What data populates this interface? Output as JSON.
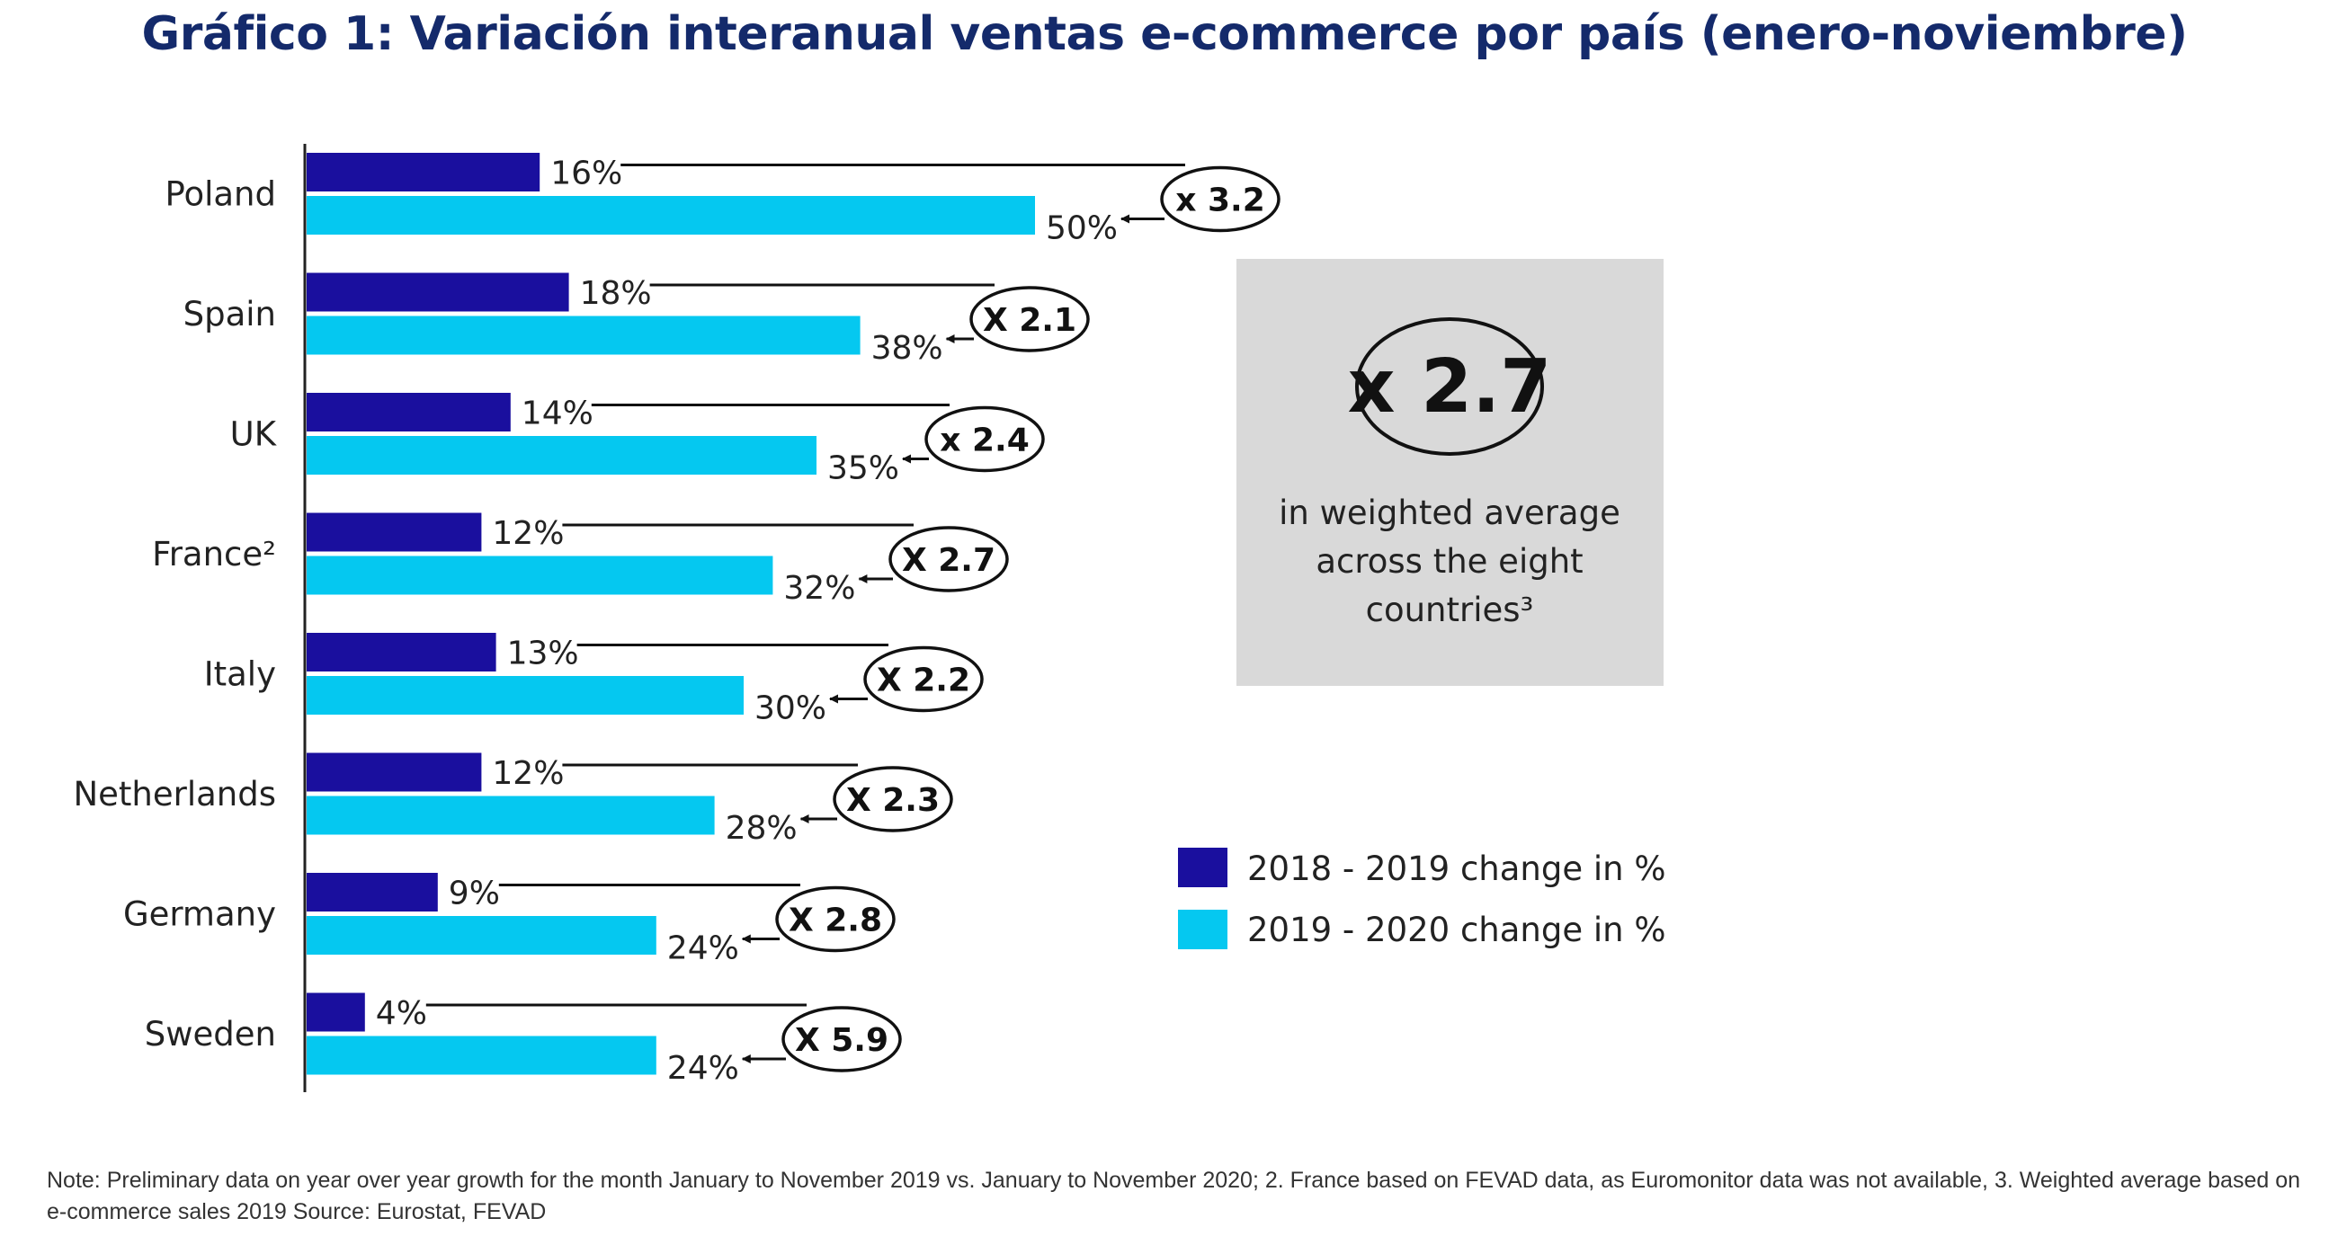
{
  "title": "Gráfico 1: Variación interanual ventas e-commerce por país (enero-noviembre)",
  "note": "Note: Preliminary data on year over year growth for the month January to November 2019 vs. January to November 2020; 2. France based on FEVAD data, as Euromonitor data was not available, 3. Weighted average based on e-commerce sales 2019 Source: Eurostat, FEVAD",
  "colors": {
    "series_2018_2019": "#1a0f9e",
    "series_2019_2020": "#05c8f0",
    "title": "#142a6b",
    "callout_bg": "#d9d9d9"
  },
  "callout": {
    "multiplier": "x 2.7",
    "lines": [
      "in weighted average",
      "across the eight",
      "countries³"
    ]
  },
  "chart_data": {
    "type": "bar",
    "orientation": "horizontal",
    "categories": [
      "Poland",
      "Spain",
      "UK",
      "France²",
      "Italy",
      "Netherlands",
      "Germany",
      "Sweden"
    ],
    "series": [
      {
        "name": "2018 - 2019 change in %",
        "values": [
          16,
          18,
          14,
          12,
          13,
          12,
          9,
          4
        ],
        "labels": [
          "16%",
          "18%",
          "14%",
          "12%",
          "13%",
          "12%",
          "9%",
          "4%"
        ]
      },
      {
        "name": "2019 - 2020 change in %",
        "values": [
          50,
          38,
          35,
          32,
          30,
          28,
          24,
          24
        ],
        "labels": [
          "50%",
          "38%",
          "35%",
          "32%",
          "30%",
          "28%",
          "24%",
          "24%"
        ]
      }
    ],
    "multipliers": [
      "x 3.2",
      "X 2.1",
      "x 2.4",
      "X 2.7",
      "X 2.2",
      "X 2.3",
      "X 2.8",
      "X 5.9"
    ],
    "legend_position": "right",
    "grid": false
  }
}
